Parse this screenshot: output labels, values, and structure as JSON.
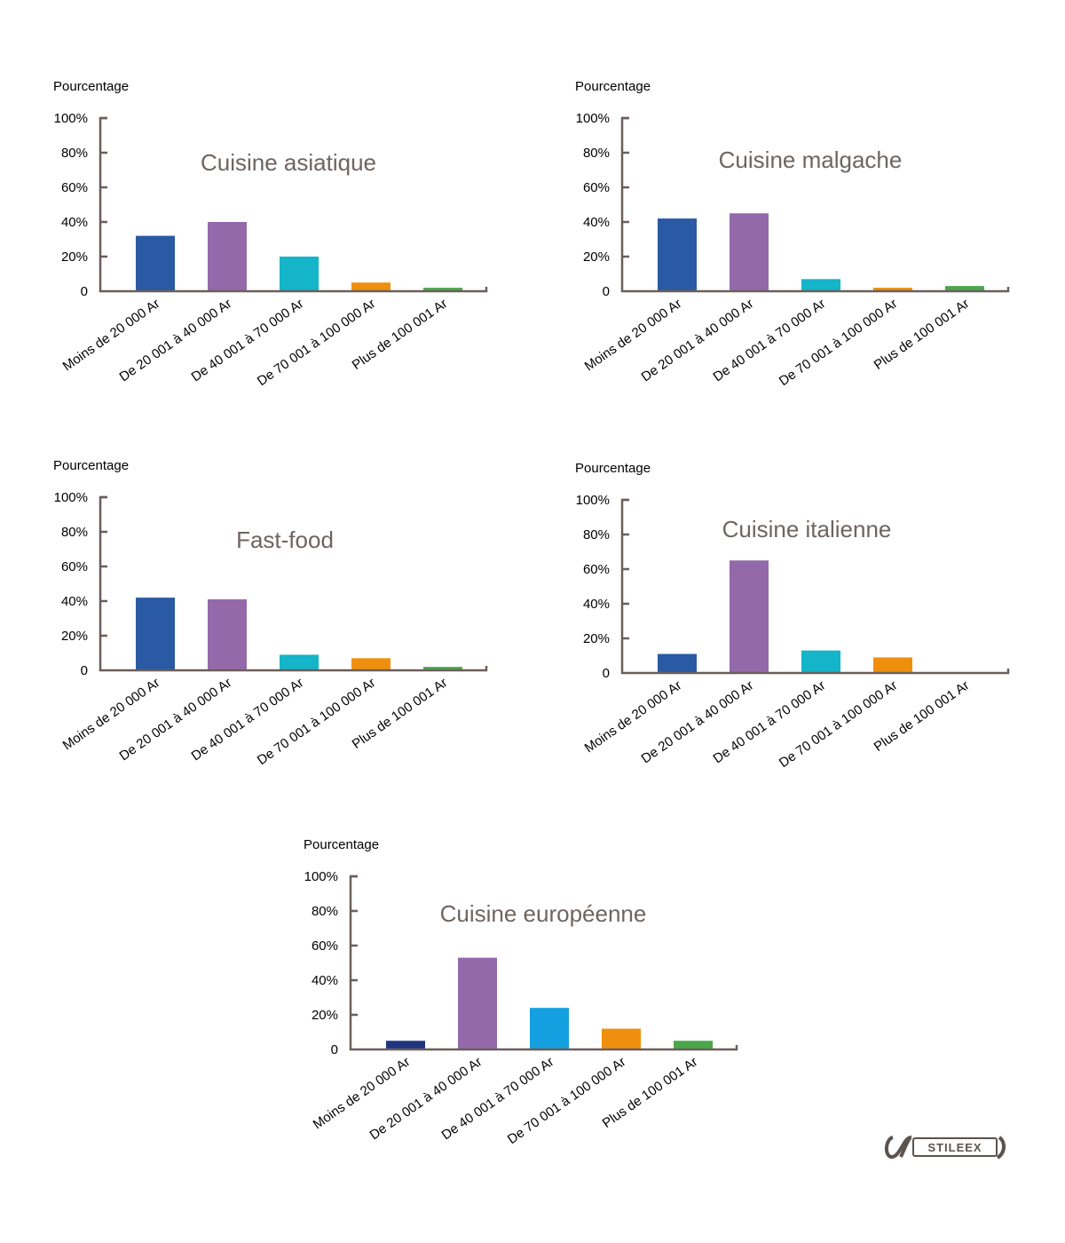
{
  "brand": {
    "logo_text": "STILEEX"
  },
  "colors": {
    "axis": "#6b5f5b",
    "title": "#6e6560"
  },
  "chart_data": [
    {
      "type": "bar",
      "title": "Cuisine asiatique",
      "ylabel": "Pourcentage",
      "xlabel": "",
      "ylim": [
        0,
        100
      ],
      "yticks": [
        "0",
        "20%",
        "40%",
        "60%",
        "80%",
        "100%"
      ],
      "categories": [
        "Moins de 20 000 Ar",
        "De 20 001 à 40 000 Ar",
        "De 40 001 à 70 000 Ar",
        "De 70 001 à 100 000 Ar",
        "Plus de 100 001 Ar"
      ],
      "values": [
        32,
        40,
        20,
        5,
        2
      ],
      "bar_colors": [
        "#2a5aa3",
        "#9469a9",
        "#14b4c9",
        "#ee900d",
        "#4aa84a"
      ]
    },
    {
      "type": "bar",
      "title": "Cuisine malgache",
      "ylabel": "Pourcentage",
      "xlabel": "",
      "ylim": [
        0,
        100
      ],
      "yticks": [
        "0",
        "20%",
        "40%",
        "60%",
        "80%",
        "100%"
      ],
      "categories": [
        "Moins de 20 000 Ar",
        "De 20 001 à 40 000 Ar",
        "De 40 001 à 70 000 Ar",
        "De 70 001 à 100 000 Ar",
        "Plus de 100 001 Ar"
      ],
      "values": [
        42,
        45,
        7,
        2,
        3
      ],
      "bar_colors": [
        "#2a5aa3",
        "#9469a9",
        "#14b4c9",
        "#ee900d",
        "#4aa84a"
      ]
    },
    {
      "type": "bar",
      "title": "Fast-food",
      "ylabel": "Pourcentage",
      "xlabel": "",
      "ylim": [
        0,
        100
      ],
      "yticks": [
        "0",
        "20%",
        "40%",
        "60%",
        "80%",
        "100%"
      ],
      "categories": [
        "Moins de 20 000 Ar",
        "De 20 001 à 40 000 Ar",
        "De 40 001 à 70 000 Ar",
        "De 70 001 à 100 000 Ar",
        "Plus de 100 001 Ar"
      ],
      "values": [
        42,
        41,
        9,
        7,
        2
      ],
      "bar_colors": [
        "#2a5aa3",
        "#9469a9",
        "#14b4c9",
        "#ee900d",
        "#4aa84a"
      ]
    },
    {
      "type": "bar",
      "title": "Cuisine italienne",
      "ylabel": "Pourcentage",
      "xlabel": "",
      "ylim": [
        0,
        100
      ],
      "yticks": [
        "0",
        "20%",
        "40%",
        "60%",
        "80%",
        "100%"
      ],
      "categories": [
        "Moins de 20 000 Ar",
        "De 20 001 à 40 000 Ar",
        "De 40 001 à 70 000 Ar",
        "De 70 001 à 100 000 Ar",
        "Plus de 100 001 Ar"
      ],
      "values": [
        11,
        65,
        13,
        9,
        0
      ],
      "bar_colors": [
        "#2a5aa3",
        "#9469a9",
        "#14b4c9",
        "#ee900d",
        "#4aa84a"
      ]
    },
    {
      "type": "bar",
      "title": "Cuisine européenne",
      "ylabel": "Pourcentage",
      "xlabel": "",
      "ylim": [
        0,
        100
      ],
      "yticks": [
        "0",
        "20%",
        "40%",
        "60%",
        "80%",
        "100%"
      ],
      "categories": [
        "Moins de 20 000 Ar",
        "De 20 001 à 40 000 Ar",
        "De 40 001 à 70 000 Ar",
        "De 70 001 à 100 000 Ar",
        "Plus de 100 001 Ar"
      ],
      "values": [
        5,
        53,
        24,
        12,
        5
      ],
      "bar_colors": [
        "#1f3580",
        "#9469a9",
        "#14a0e0",
        "#ee900d",
        "#4aa84a"
      ]
    }
  ]
}
